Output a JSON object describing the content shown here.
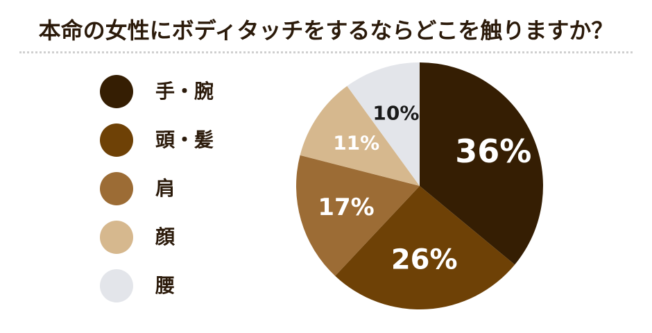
{
  "chart_data": {
    "type": "pie",
    "title": "本命の女性にボディタッチをするならどこを触りますか？",
    "categories": [
      "手・腕",
      "頭・髪",
      "肩",
      "顔",
      "腰"
    ],
    "values": [
      36,
      26,
      17,
      11,
      10
    ],
    "labels": [
      "36%",
      "26%",
      "17%",
      "11%",
      "10%"
    ],
    "colors": [
      "#351e03",
      "#6e4106",
      "#9c6c35",
      "#d6b88e",
      "#e3e5ea"
    ],
    "label_colors": [
      "#ffffff",
      "#ffffff",
      "#ffffff",
      "#ffffff",
      "#1a1a1a"
    ],
    "legend_position": "left"
  }
}
